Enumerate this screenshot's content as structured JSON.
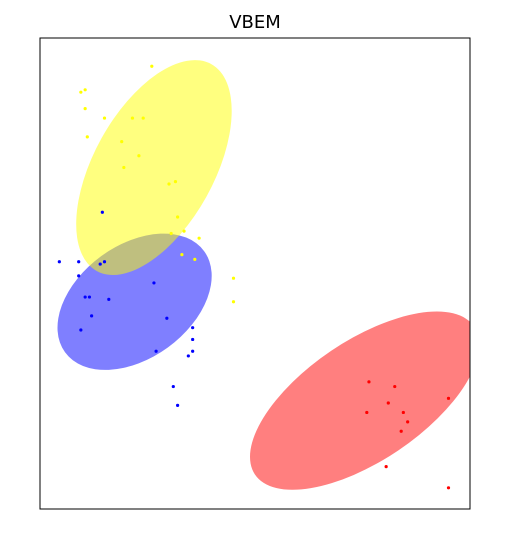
{
  "chart_data": {
    "type": "scatter",
    "title": "VBEM",
    "xlabel": "",
    "ylabel": "",
    "xlim": [
      0,
      10
    ],
    "ylim": [
      0,
      10
    ],
    "grid": false,
    "axis_ticks": false,
    "series": [
      {
        "color": "#0000ff",
        "points": [
          [
            0.45,
            5.25
          ],
          [
            0.9,
            5.25
          ],
          [
            0.9,
            4.95
          ],
          [
            1.45,
            6.3
          ],
          [
            1.4,
            5.2
          ],
          [
            1.5,
            5.25
          ],
          [
            1.05,
            4.5
          ],
          [
            1.15,
            4.5
          ],
          [
            1.6,
            4.45
          ],
          [
            2.65,
            4.8
          ],
          [
            1.2,
            4.1
          ],
          [
            0.95,
            3.8
          ],
          [
            2.95,
            4.05
          ],
          [
            3.55,
            3.85
          ],
          [
            3.55,
            3.6
          ],
          [
            2.7,
            3.35
          ],
          [
            3.45,
            3.25
          ],
          [
            3.55,
            3.35
          ],
          [
            3.1,
            2.6
          ],
          [
            3.2,
            2.2
          ]
        ]
      },
      {
        "color": "#ffff00",
        "points": [
          [
            2.6,
            9.4
          ],
          [
            0.95,
            8.85
          ],
          [
            1.05,
            8.9
          ],
          [
            1.05,
            8.5
          ],
          [
            1.5,
            8.3
          ],
          [
            2.15,
            8.3
          ],
          [
            2.4,
            8.3
          ],
          [
            1.1,
            7.9
          ],
          [
            1.9,
            7.8
          ],
          [
            2.3,
            7.5
          ],
          [
            1.95,
            7.25
          ],
          [
            3.15,
            6.95
          ],
          [
            3.0,
            6.9
          ],
          [
            3.2,
            6.2
          ],
          [
            3.35,
            5.9
          ],
          [
            3.05,
            5.85
          ],
          [
            3.7,
            5.75
          ],
          [
            3.3,
            5.4
          ],
          [
            3.6,
            5.3
          ],
          [
            4.5,
            4.9
          ],
          [
            4.5,
            4.4
          ]
        ]
      },
      {
        "color": "#ff0000",
        "points": [
          [
            7.65,
            2.7
          ],
          [
            8.25,
            2.6
          ],
          [
            9.5,
            2.35
          ],
          [
            8.1,
            2.25
          ],
          [
            7.6,
            2.05
          ],
          [
            8.45,
            2.05
          ],
          [
            8.55,
            1.85
          ],
          [
            8.4,
            1.65
          ],
          [
            8.05,
            0.9
          ],
          [
            9.5,
            0.45
          ]
        ]
      }
    ],
    "ellipses": [
      {
        "color": "#0000ff",
        "opacity": 0.5,
        "center": [
          2.2,
          4.4
        ],
        "width": 4.0,
        "height": 2.4,
        "angle": -36
      },
      {
        "color": "#ffff00",
        "opacity": 0.5,
        "center": [
          2.65,
          7.25
        ],
        "width": 5.5,
        "height": 2.55,
        "angle": -61
      },
      {
        "color": "#ff0000",
        "opacity": 0.5,
        "center": [
          7.55,
          2.3
        ],
        "width": 6.15,
        "height": 2.55,
        "angle": -34
      }
    ]
  }
}
